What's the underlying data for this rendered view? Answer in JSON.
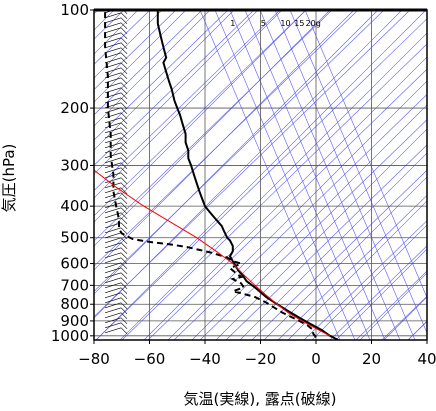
{
  "chart_data": {
    "type": "line",
    "xlabel": "気温(実線), 露点(破線)",
    "ylabel": "気圧(hPa)",
    "xlim": [
      -80,
      40
    ],
    "ylim": [
      1030,
      100
    ],
    "y_scale": "log",
    "grid": true,
    "x_ticks": [
      -80,
      -60,
      -40,
      -20,
      0,
      20,
      40
    ],
    "x_tick_labels": [
      "−80",
      "−60",
      "−40",
      "−20",
      "0",
      "20",
      "40"
    ],
    "y_ticks": [
      100,
      200,
      300,
      400,
      500,
      600,
      700,
      800,
      900,
      1000
    ],
    "y_tick_labels": [
      "100",
      "200",
      "300",
      "400",
      "500",
      "600",
      "700",
      "800",
      "900",
      "1000"
    ],
    "mixing_ratio_labels": [
      "1",
      "5",
      "10",
      "15",
      "20g"
    ],
    "series": [
      {
        "style": "solid",
        "color": "#000000",
        "points": [
          [
            8,
            1030
          ],
          [
            5,
            1000
          ],
          [
            2,
            960
          ],
          [
            -2,
            920
          ],
          [
            -6,
            880
          ],
          [
            -10,
            840
          ],
          [
            -14,
            800
          ],
          [
            -18,
            760
          ],
          [
            -22,
            710
          ],
          [
            -25,
            680
          ],
          [
            -26,
            660
          ],
          [
            -28,
            630
          ],
          [
            -29,
            610
          ],
          [
            -30,
            590
          ],
          [
            -31,
            570
          ],
          [
            -30,
            550
          ],
          [
            -30,
            530
          ],
          [
            -31,
            510
          ],
          [
            -32,
            500
          ],
          [
            -33,
            480
          ],
          [
            -34,
            460
          ],
          [
            -36,
            440
          ],
          [
            -38,
            420
          ],
          [
            -40,
            400
          ],
          [
            -41,
            380
          ],
          [
            -42,
            360
          ],
          [
            -43,
            340
          ],
          [
            -44,
            320
          ],
          [
            -45,
            300
          ],
          [
            -46,
            285
          ],
          [
            -46,
            270
          ],
          [
            -47,
            255
          ],
          [
            -47,
            240
          ],
          [
            -48,
            225
          ],
          [
            -49,
            210
          ],
          [
            -50,
            200
          ],
          [
            -51,
            190
          ],
          [
            -52,
            175
          ],
          [
            -53,
            165
          ],
          [
            -54,
            155
          ],
          [
            -55,
            145
          ],
          [
            -54,
            140
          ],
          [
            -55,
            130
          ],
          [
            -56,
            120
          ],
          [
            -57,
            110
          ],
          [
            -57,
            100
          ]
        ]
      },
      {
        "style": "dashed",
        "color": "#000000",
        "points": [
          [
            0,
            1010
          ],
          [
            -1,
            985
          ],
          [
            -1,
            960
          ],
          [
            -3,
            930
          ],
          [
            -6,
            900
          ],
          [
            -12,
            850
          ],
          [
            -15,
            820
          ],
          [
            -18,
            790
          ],
          [
            -22,
            760
          ],
          [
            -27,
            740
          ],
          [
            -30,
            730
          ],
          [
            -26,
            710
          ],
          [
            -27,
            690
          ],
          [
            -30,
            670
          ],
          [
            -27,
            660
          ],
          [
            -29,
            640
          ],
          [
            -31,
            620
          ],
          [
            -27,
            600
          ],
          [
            -30,
            590
          ],
          [
            -32,
            575
          ],
          [
            -35,
            565
          ],
          [
            -38,
            555
          ],
          [
            -42,
            545
          ],
          [
            -46,
            535
          ],
          [
            -52,
            525
          ],
          [
            -60,
            515
          ],
          [
            -66,
            505
          ],
          [
            -68,
            495
          ],
          [
            -70,
            485
          ],
          [
            -71,
            470
          ],
          [
            -71,
            440
          ],
          [
            -72,
            400
          ],
          [
            -73,
            360
          ],
          [
            -73,
            320
          ],
          [
            -74,
            280
          ],
          [
            -74,
            240
          ],
          [
            -75,
            200
          ],
          [
            -75,
            160
          ],
          [
            -76,
            130
          ],
          [
            -76,
            100
          ]
        ]
      },
      {
        "style": "solid",
        "color": "#ff0000",
        "points": [
          [
            5,
            1000
          ],
          [
            0,
            950
          ],
          [
            -5,
            900
          ],
          [
            -10,
            850
          ],
          [
            -14,
            800
          ],
          [
            -18,
            750
          ],
          [
            -22,
            700
          ],
          [
            -26,
            650
          ],
          [
            -30,
            600
          ],
          [
            -36,
            550
          ],
          [
            -43,
            500
          ],
          [
            -52,
            450
          ],
          [
            -62,
            400
          ],
          [
            -72,
            350
          ],
          [
            -80,
            310
          ]
        ]
      }
    ]
  }
}
